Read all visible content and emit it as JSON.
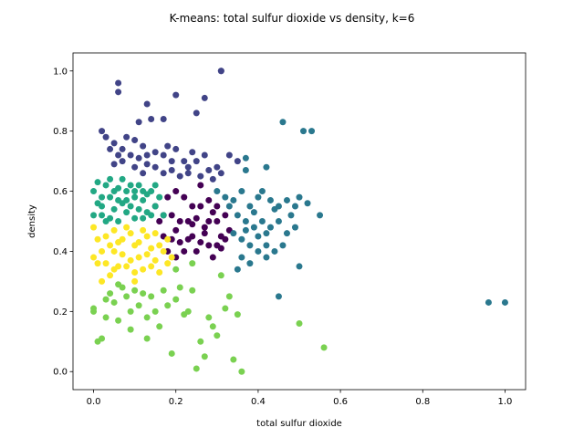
{
  "chart_data": {
    "type": "scatter",
    "title": "K-means: total sulfur dioxide vs density, k=6",
    "xlabel": "total sulfur dioxide",
    "ylabel": "density",
    "xlim": [
      -0.05,
      1.05
    ],
    "ylim": [
      -0.06,
      1.06
    ],
    "xticks": [
      0.0,
      0.2,
      0.4,
      0.6,
      0.8,
      1.0
    ],
    "yticks": [
      0.0,
      0.2,
      0.4,
      0.6,
      0.8,
      1.0
    ],
    "xtick_labels": [
      "0.0",
      "0.2",
      "0.4",
      "0.6",
      "0.8",
      "1.0"
    ],
    "ytick_labels": [
      "0.0",
      "0.2",
      "0.4",
      "0.6",
      "0.8",
      "1.0"
    ],
    "grid": false,
    "legend": "none",
    "series": [
      {
        "cluster": 0,
        "color": "#440154",
        "points": [
          [
            0.15,
            0.55
          ],
          [
            0.16,
            0.5
          ],
          [
            0.17,
            0.45
          ],
          [
            0.18,
            0.4
          ],
          [
            0.19,
            0.52
          ],
          [
            0.2,
            0.47
          ],
          [
            0.21,
            0.43
          ],
          [
            0.22,
            0.58
          ],
          [
            0.23,
            0.5
          ],
          [
            0.24,
            0.45
          ],
          [
            0.25,
            0.4
          ],
          [
            0.26,
            0.55
          ],
          [
            0.27,
            0.48
          ],
          [
            0.28,
            0.42
          ],
          [
            0.29,
            0.38
          ],
          [
            0.3,
            0.5
          ],
          [
            0.31,
            0.45
          ],
          [
            0.32,
            0.52
          ],
          [
            0.33,
            0.47
          ],
          [
            0.2,
            0.6
          ],
          [
            0.22,
            0.4
          ],
          [
            0.24,
            0.55
          ],
          [
            0.26,
            0.62
          ],
          [
            0.28,
            0.5
          ],
          [
            0.3,
            0.42
          ],
          [
            0.18,
            0.58
          ],
          [
            0.2,
            0.38
          ],
          [
            0.23,
            0.44
          ],
          [
            0.25,
            0.51
          ],
          [
            0.27,
            0.46
          ],
          [
            0.29,
            0.53
          ],
          [
            0.31,
            0.41
          ],
          [
            0.21,
            0.5
          ],
          [
            0.19,
            0.44
          ],
          [
            0.17,
            0.52
          ],
          [
            0.24,
            0.49
          ],
          [
            0.26,
            0.43
          ],
          [
            0.28,
            0.57
          ],
          [
            0.3,
            0.55
          ],
          [
            0.32,
            0.44
          ]
        ]
      },
      {
        "cluster": 1,
        "color": "#414487",
        "points": [
          [
            0.06,
            0.96
          ],
          [
            0.06,
            0.93
          ],
          [
            0.31,
            1.0
          ],
          [
            0.31,
            1.0
          ],
          [
            0.2,
            0.92
          ],
          [
            0.27,
            0.91
          ],
          [
            0.25,
            0.86
          ],
          [
            0.13,
            0.89
          ],
          [
            0.14,
            0.84
          ],
          [
            0.17,
            0.84
          ],
          [
            0.11,
            0.83
          ],
          [
            0.02,
            0.8
          ],
          [
            0.03,
            0.78
          ],
          [
            0.05,
            0.76
          ],
          [
            0.07,
            0.74
          ],
          [
            0.08,
            0.78
          ],
          [
            0.1,
            0.77
          ],
          [
            0.12,
            0.75
          ],
          [
            0.13,
            0.72
          ],
          [
            0.15,
            0.73
          ],
          [
            0.17,
            0.72
          ],
          [
            0.19,
            0.7
          ],
          [
            0.2,
            0.74
          ],
          [
            0.22,
            0.7
          ],
          [
            0.23,
            0.68
          ],
          [
            0.25,
            0.7
          ],
          [
            0.27,
            0.72
          ],
          [
            0.28,
            0.67
          ],
          [
            0.3,
            0.68
          ],
          [
            0.33,
            0.72
          ],
          [
            0.35,
            0.7
          ],
          [
            0.05,
            0.69
          ],
          [
            0.07,
            0.7
          ],
          [
            0.09,
            0.72
          ],
          [
            0.11,
            0.71
          ],
          [
            0.13,
            0.69
          ],
          [
            0.15,
            0.68
          ],
          [
            0.17,
            0.66
          ],
          [
            0.19,
            0.67
          ],
          [
            0.21,
            0.65
          ],
          [
            0.23,
            0.66
          ],
          [
            0.26,
            0.65
          ],
          [
            0.29,
            0.64
          ],
          [
            0.31,
            0.66
          ],
          [
            0.04,
            0.74
          ],
          [
            0.06,
            0.72
          ],
          [
            0.1,
            0.68
          ],
          [
            0.12,
            0.66
          ],
          [
            0.18,
            0.75
          ],
          [
            0.24,
            0.73
          ]
        ]
      },
      {
        "cluster": 2,
        "color": "#2a788e",
        "points": [
          [
            0.46,
            0.83
          ],
          [
            0.51,
            0.8
          ],
          [
            0.53,
            0.8
          ],
          [
            0.37,
            0.71
          ],
          [
            0.37,
            0.67
          ],
          [
            0.42,
            0.68
          ],
          [
            0.3,
            0.6
          ],
          [
            0.32,
            0.58
          ],
          [
            0.34,
            0.57
          ],
          [
            0.36,
            0.6
          ],
          [
            0.38,
            0.55
          ],
          [
            0.4,
            0.58
          ],
          [
            0.41,
            0.6
          ],
          [
            0.43,
            0.57
          ],
          [
            0.45,
            0.55
          ],
          [
            0.47,
            0.57
          ],
          [
            0.49,
            0.55
          ],
          [
            0.5,
            0.58
          ],
          [
            0.52,
            0.56
          ],
          [
            0.55,
            0.52
          ],
          [
            0.35,
            0.52
          ],
          [
            0.37,
            0.5
          ],
          [
            0.39,
            0.48
          ],
          [
            0.41,
            0.5
          ],
          [
            0.43,
            0.48
          ],
          [
            0.45,
            0.5
          ],
          [
            0.47,
            0.46
          ],
          [
            0.49,
            0.48
          ],
          [
            0.34,
            0.46
          ],
          [
            0.36,
            0.44
          ],
          [
            0.38,
            0.42
          ],
          [
            0.4,
            0.45
          ],
          [
            0.42,
            0.42
          ],
          [
            0.44,
            0.4
          ],
          [
            0.46,
            0.42
          ],
          [
            0.36,
            0.38
          ],
          [
            0.38,
            0.36
          ],
          [
            0.4,
            0.4
          ],
          [
            0.42,
            0.38
          ],
          [
            0.35,
            0.34
          ],
          [
            0.45,
            0.25
          ],
          [
            0.5,
            0.35
          ],
          [
            0.96,
            0.23
          ],
          [
            1.0,
            0.23
          ],
          [
            0.33,
            0.55
          ],
          [
            0.39,
            0.53
          ],
          [
            0.44,
            0.54
          ],
          [
            0.48,
            0.52
          ],
          [
            0.37,
            0.47
          ],
          [
            0.42,
            0.46
          ]
        ]
      },
      {
        "cluster": 3,
        "color": "#22a884",
        "points": [
          [
            0.0,
            0.6
          ],
          [
            0.01,
            0.56
          ],
          [
            0.02,
            0.52
          ],
          [
            0.03,
            0.62
          ],
          [
            0.04,
            0.58
          ],
          [
            0.05,
            0.54
          ],
          [
            0.06,
            0.5
          ],
          [
            0.07,
            0.64
          ],
          [
            0.08,
            0.6
          ],
          [
            0.09,
            0.55
          ],
          [
            0.1,
            0.51
          ],
          [
            0.11,
            0.62
          ],
          [
            0.12,
            0.57
          ],
          [
            0.13,
            0.53
          ],
          [
            0.14,
            0.6
          ],
          [
            0.15,
            0.55
          ],
          [
            0.16,
            0.58
          ],
          [
            0.17,
            0.52
          ],
          [
            0.01,
            0.63
          ],
          [
            0.03,
            0.5
          ],
          [
            0.05,
            0.6
          ],
          [
            0.07,
            0.56
          ],
          [
            0.09,
            0.62
          ],
          [
            0.11,
            0.54
          ],
          [
            0.13,
            0.59
          ],
          [
            0.02,
            0.58
          ],
          [
            0.04,
            0.64
          ],
          [
            0.06,
            0.61
          ],
          [
            0.08,
            0.53
          ],
          [
            0.1,
            0.58
          ],
          [
            0.12,
            0.6
          ],
          [
            0.14,
            0.52
          ],
          [
            0.0,
            0.52
          ],
          [
            0.02,
            0.55
          ],
          [
            0.06,
            0.57
          ],
          [
            0.1,
            0.6
          ],
          [
            0.15,
            0.62
          ],
          [
            0.04,
            0.51
          ],
          [
            0.08,
            0.57
          ],
          [
            0.12,
            0.51
          ]
        ]
      },
      {
        "cluster": 4,
        "color": "#7ad151",
        "points": [
          [
            0.0,
            0.21
          ],
          [
            0.0,
            0.2
          ],
          [
            0.02,
            0.11
          ],
          [
            0.01,
            0.1
          ],
          [
            0.03,
            0.18
          ],
          [
            0.04,
            0.26
          ],
          [
            0.05,
            0.23
          ],
          [
            0.06,
            0.17
          ],
          [
            0.07,
            0.28
          ],
          [
            0.08,
            0.25
          ],
          [
            0.09,
            0.2
          ],
          [
            0.1,
            0.27
          ],
          [
            0.11,
            0.22
          ],
          [
            0.12,
            0.26
          ],
          [
            0.13,
            0.18
          ],
          [
            0.14,
            0.25
          ],
          [
            0.15,
            0.2
          ],
          [
            0.16,
            0.15
          ],
          [
            0.17,
            0.27
          ],
          [
            0.18,
            0.22
          ],
          [
            0.19,
            0.06
          ],
          [
            0.2,
            0.24
          ],
          [
            0.21,
            0.28
          ],
          [
            0.22,
            0.19
          ],
          [
            0.23,
            0.2
          ],
          [
            0.25,
            0.01
          ],
          [
            0.27,
            0.05
          ],
          [
            0.28,
            0.18
          ],
          [
            0.29,
            0.15
          ],
          [
            0.3,
            0.12
          ],
          [
            0.32,
            0.21
          ],
          [
            0.34,
            0.04
          ],
          [
            0.36,
            0.0
          ],
          [
            0.24,
            0.36
          ],
          [
            0.31,
            0.32
          ],
          [
            0.33,
            0.25
          ],
          [
            0.35,
            0.19
          ],
          [
            0.5,
            0.16
          ],
          [
            0.56,
            0.08
          ],
          [
            0.26,
            0.1
          ],
          [
            0.09,
            0.14
          ],
          [
            0.13,
            0.11
          ],
          [
            0.2,
            0.34
          ],
          [
            0.24,
            0.27
          ],
          [
            0.03,
            0.24
          ],
          [
            0.06,
            0.29
          ]
        ]
      },
      {
        "cluster": 5,
        "color": "#fde725",
        "points": [
          [
            0.0,
            0.48
          ],
          [
            0.01,
            0.44
          ],
          [
            0.02,
            0.4
          ],
          [
            0.03,
            0.36
          ],
          [
            0.04,
            0.32
          ],
          [
            0.05,
            0.47
          ],
          [
            0.06,
            0.43
          ],
          [
            0.07,
            0.39
          ],
          [
            0.08,
            0.35
          ],
          [
            0.09,
            0.46
          ],
          [
            0.1,
            0.42
          ],
          [
            0.11,
            0.38
          ],
          [
            0.12,
            0.34
          ],
          [
            0.13,
            0.45
          ],
          [
            0.14,
            0.41
          ],
          [
            0.15,
            0.37
          ],
          [
            0.16,
            0.33
          ],
          [
            0.17,
            0.4
          ],
          [
            0.18,
            0.36
          ],
          [
            0.19,
            0.38
          ],
          [
            0.01,
            0.36
          ],
          [
            0.03,
            0.45
          ],
          [
            0.05,
            0.4
          ],
          [
            0.07,
            0.44
          ],
          [
            0.09,
            0.37
          ],
          [
            0.11,
            0.43
          ],
          [
            0.13,
            0.39
          ],
          [
            0.15,
            0.46
          ],
          [
            0.02,
            0.3
          ],
          [
            0.04,
            0.42
          ],
          [
            0.06,
            0.35
          ],
          [
            0.08,
            0.48
          ],
          [
            0.1,
            0.33
          ],
          [
            0.12,
            0.47
          ],
          [
            0.14,
            0.35
          ],
          [
            0.16,
            0.42
          ],
          [
            0.0,
            0.38
          ],
          [
            0.05,
            0.34
          ],
          [
            0.1,
            0.3
          ],
          [
            0.18,
            0.44
          ]
        ]
      }
    ]
  }
}
